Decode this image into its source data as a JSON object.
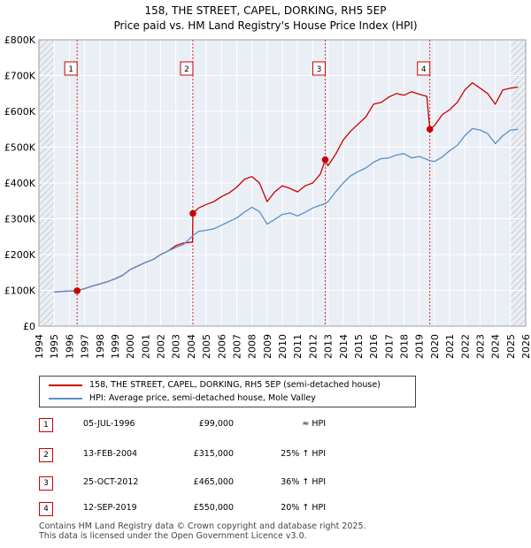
{
  "chart_data": {
    "type": "line",
    "title": "158, THE STREET, CAPEL, DORKING, RH5 5EP",
    "subtitle": "Price paid vs. HM Land Registry's House Price Index (HPI)",
    "xlim": [
      1994,
      2026
    ],
    "ylim": [
      0,
      800000
    ],
    "x_ticks": [
      1994,
      1995,
      1996,
      1997,
      1998,
      1999,
      2000,
      2001,
      2002,
      2003,
      2004,
      2005,
      2006,
      2007,
      2008,
      2009,
      2010,
      2011,
      2012,
      2013,
      2014,
      2015,
      2016,
      2017,
      2018,
      2019,
      2020,
      2021,
      2022,
      2023,
      2024,
      2025,
      2026
    ],
    "y_ticks": [
      {
        "value": 0,
        "label": "£0"
      },
      {
        "value": 100000,
        "label": "£100K"
      },
      {
        "value": 200000,
        "label": "£200K"
      },
      {
        "value": 300000,
        "label": "£300K"
      },
      {
        "value": 400000,
        "label": "£400K"
      },
      {
        "value": 500000,
        "label": "£500K"
      },
      {
        "value": 600000,
        "label": "£600K"
      },
      {
        "value": 700000,
        "label": "£700K"
      },
      {
        "value": 800000,
        "label": "£800K"
      }
    ],
    "hatch_before": 1995.0,
    "hatch_after": 2025.0,
    "series": [
      {
        "name": "158, THE STREET, CAPEL, DORKING, RH5 5EP (semi-detached house)",
        "color": "#cc0000",
        "x": [
          1995.0,
          1995.5,
          1996.0,
          1996.51,
          1997.0,
          1997.5,
          1998.0,
          1998.5,
          1999.0,
          1999.5,
          2000.0,
          2000.5,
          2001.0,
          2001.5,
          2002.0,
          2002.5,
          2003.0,
          2003.5,
          2004.1,
          2004.12,
          2004.5,
          2005.0,
          2005.5,
          2006.0,
          2006.5,
          2007.0,
          2007.5,
          2008.0,
          2008.5,
          2009.0,
          2009.5,
          2010.0,
          2010.5,
          2011.0,
          2011.5,
          2012.0,
          2012.5,
          2012.82,
          2013.0,
          2013.5,
          2014.0,
          2014.5,
          2015.0,
          2015.5,
          2016.0,
          2016.5,
          2017.0,
          2017.5,
          2018.0,
          2018.5,
          2019.0,
          2019.5,
          2019.7,
          2020.0,
          2020.5,
          2021.0,
          2021.5,
          2022.0,
          2022.5,
          2023.0,
          2023.5,
          2024.0,
          2024.5,
          2025.0,
          2025.5
        ],
        "values": [
          95000,
          97000,
          98000,
          99000,
          105000,
          112000,
          118000,
          124000,
          132000,
          142000,
          158000,
          168000,
          178000,
          186000,
          200000,
          210000,
          225000,
          232000,
          235000,
          315000,
          330000,
          340000,
          348000,
          362000,
          372000,
          388000,
          410000,
          418000,
          400000,
          348000,
          375000,
          392000,
          385000,
          375000,
          392000,
          400000,
          425000,
          465000,
          448000,
          480000,
          520000,
          545000,
          565000,
          585000,
          620000,
          625000,
          640000,
          650000,
          645000,
          655000,
          648000,
          642000,
          550000,
          560000,
          590000,
          605000,
          625000,
          660000,
          680000,
          665000,
          650000,
          620000,
          660000,
          665000,
          668000
        ]
      },
      {
        "name": "HPI: Average price, semi-detached house, Mole Valley",
        "color": "#5b8fc9",
        "x": [
          1995.0,
          1995.5,
          1996.0,
          1996.51,
          1997.0,
          1997.5,
          1998.0,
          1998.5,
          1999.0,
          1999.5,
          2000.0,
          2000.5,
          2001.0,
          2001.5,
          2002.0,
          2002.5,
          2003.0,
          2003.5,
          2004.1,
          2004.5,
          2005.0,
          2005.5,
          2006.0,
          2006.5,
          2007.0,
          2007.5,
          2008.0,
          2008.5,
          2009.0,
          2009.5,
          2010.0,
          2010.5,
          2011.0,
          2011.5,
          2012.0,
          2012.5,
          2012.82,
          2013.0,
          2013.5,
          2014.0,
          2014.5,
          2015.0,
          2015.5,
          2016.0,
          2016.5,
          2017.0,
          2017.5,
          2018.0,
          2018.5,
          2019.0,
          2019.5,
          2019.7,
          2020.0,
          2020.5,
          2021.0,
          2021.5,
          2022.0,
          2022.5,
          2023.0,
          2023.5,
          2024.0,
          2024.5,
          2025.0,
          2025.5
        ],
        "values": [
          95000,
          97000,
          98000,
          99000,
          105000,
          112000,
          118000,
          124000,
          132000,
          142000,
          158000,
          168000,
          178000,
          186000,
          200000,
          210000,
          220000,
          228000,
          252000,
          265000,
          268000,
          272000,
          282000,
          292000,
          302000,
          318000,
          332000,
          320000,
          285000,
          298000,
          312000,
          316000,
          308000,
          318000,
          330000,
          338000,
          342000,
          348000,
          375000,
          400000,
          420000,
          432000,
          442000,
          458000,
          468000,
          470000,
          478000,
          482000,
          470000,
          474000,
          466000,
          462000,
          460000,
          472000,
          490000,
          505000,
          532000,
          552000,
          548000,
          538000,
          510000,
          532000,
          548000,
          550000
        ]
      }
    ],
    "sales": [
      {
        "label": "1",
        "x": 1996.51,
        "y": 99000,
        "date": "05-JUL-1996",
        "price": "£99,000",
        "hpi": "≈ HPI"
      },
      {
        "label": "2",
        "x": 2004.12,
        "y": 315000,
        "date": "13-FEB-2004",
        "price": "£315,000",
        "hpi": "25% ↑ HPI"
      },
      {
        "label": "3",
        "x": 2012.82,
        "y": 465000,
        "date": "25-OCT-2012",
        "price": "£465,000",
        "hpi": "36% ↑ HPI"
      },
      {
        "label": "4",
        "x": 2019.7,
        "y": 550000,
        "date": "12-SEP-2019",
        "price": "£550,000",
        "hpi": "20% ↑ HPI"
      }
    ]
  },
  "legend": {
    "sales_label": "158, THE STREET, CAPEL, DORKING, RH5 5EP (semi-detached house)",
    "hpi_label": "HPI: Average price, semi-detached house, Mole Valley"
  },
  "sales_table": [
    {
      "label": "1",
      "date": "05-JUL-1996",
      "price": "£99,000",
      "hpi": "≈ HPI"
    },
    {
      "label": "2",
      "date": "13-FEB-2004",
      "price": "£315,000",
      "hpi": "25% ↑ HPI"
    },
    {
      "label": "3",
      "date": "25-OCT-2012",
      "price": "£465,000",
      "hpi": "36% ↑ HPI"
    },
    {
      "label": "4",
      "date": "12-SEP-2019",
      "price": "£550,000",
      "hpi": "20% ↑ HPI"
    }
  ],
  "footer": {
    "line1": "Contains HM Land Registry data © Crown copyright and database right 2025.",
    "line2": "This data is licensed under the Open Government Licence v3.0."
  },
  "colors": {
    "sales": "#cc0000",
    "hpi": "#5b8fc9",
    "grid": "#dddddd",
    "plot_bg": "#eaeef5"
  }
}
